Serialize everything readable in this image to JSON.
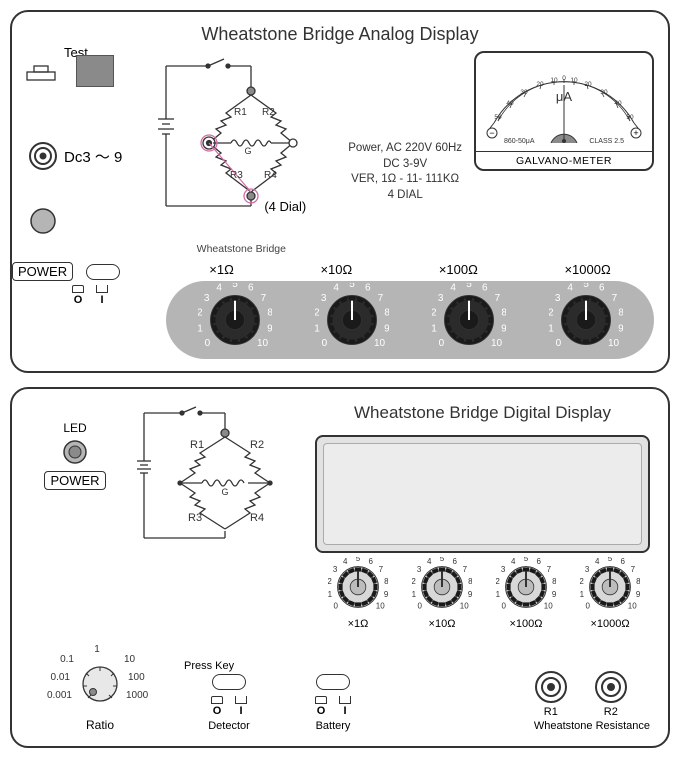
{
  "colors": {
    "stroke": "#333333",
    "bg": "#ffffff",
    "gray_fill": "#8a8a8a",
    "dial_bar": "#b5b5b5",
    "lcd_bg": "#e2e2e2",
    "highlight": "#d36ba6"
  },
  "analog": {
    "title": "Wheatstone Bridge Analog Display",
    "test_label": "Test",
    "dc_label": "Dc3 ～ 9",
    "bridge_caption": "Wheatstone Bridge",
    "bridge": {
      "r1": "R1",
      "r2": "R2",
      "r3": "R3",
      "r4": "R4",
      "g": "G"
    },
    "dial4_label": "(4 Dial)",
    "mid_text": {
      "power": "Power, AC 220V 60Hz",
      "dc": "DC 3-9V",
      "ver": "VER, 1Ω - 11- 111KΩ",
      "dial": "4 DIAL"
    },
    "meter": {
      "scale_ticks": [
        "50",
        "40",
        "30",
        "20",
        "10",
        "0",
        "10",
        "20",
        "30",
        "40",
        "50"
      ],
      "unit": "μA",
      "minus": "−",
      "plus": "+",
      "range": "860-50μA",
      "cls": "CLASS 2.5",
      "label": "GALVANO-METER"
    },
    "power_label": "POWER",
    "oi": {
      "o": "O",
      "i": "I"
    },
    "dial_labels": [
      "×1Ω",
      "×10Ω",
      "×100Ω",
      "×1000Ω"
    ],
    "dial_numbers": [
      "0",
      "1",
      "2",
      "3",
      "4",
      "5",
      "6",
      "7",
      "8",
      "9",
      "10"
    ]
  },
  "digital": {
    "title": "Wheatstone Bridge Digital Display",
    "led_label": "LED",
    "power_label": "POWER",
    "bridge": {
      "r1": "R1",
      "r2": "R2",
      "r3": "R3",
      "r4": "R4",
      "g": "G"
    },
    "dial_labels": [
      "×1Ω",
      "×10Ω",
      "×100Ω",
      "×1000Ω"
    ],
    "dial_numbers": [
      "0",
      "1",
      "2",
      "3",
      "4",
      "5",
      "6",
      "7",
      "8",
      "9",
      "10"
    ],
    "ratio": {
      "label": "Ratio",
      "values": [
        "0.001",
        "0.01",
        "0.1",
        "1",
        "10",
        "100",
        "1000"
      ]
    },
    "press_key": "Press Key",
    "detector": "Detector",
    "battery": "Battery",
    "oi": {
      "o": "O",
      "i": "I"
    },
    "conn": {
      "r1": "R1",
      "r2": "R2",
      "caption": "Wheatstone Resistance"
    }
  }
}
